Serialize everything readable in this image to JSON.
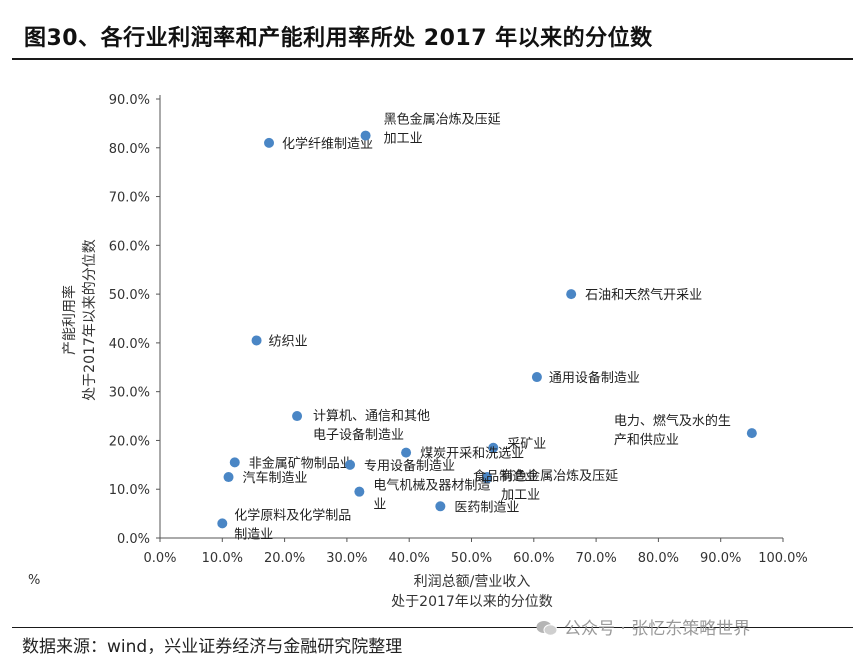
{
  "header": {
    "title": "图30、各行业利润率和产能利用率所处 2017 年以来的分位数"
  },
  "footer": {
    "source": "数据来源：wind，兴业证券经济与金融研究院整理",
    "watermark": "公众号 · 张忆东策略世界"
  },
  "colors": {
    "marker": "#4a86c5",
    "text": "#222222",
    "rule": "#1a1a1a"
  },
  "icons": {
    "watermark": "wechat-icon"
  },
  "chart_data": {
    "type": "scatter",
    "xlabel_lines": [
      "利润总额/营业收入",
      "处于2017年以来的分位数"
    ],
    "ylabel_lines": [
      "产能利用率",
      "处于2017年以来的分位数"
    ],
    "unit_label": "%",
    "xlim": [
      0,
      100
    ],
    "ylim": [
      0,
      90
    ],
    "x_ticks": [
      "0.0%",
      "10.0%",
      "20.0%",
      "30.0%",
      "40.0%",
      "50.0%",
      "60.0%",
      "70.0%",
      "80.0%",
      "90.0%",
      "100.0%"
    ],
    "y_ticks": [
      "0.0%",
      "10.0%",
      "20.0%",
      "30.0%",
      "40.0%",
      "50.0%",
      "60.0%",
      "70.0%",
      "80.0%",
      "90.0%"
    ],
    "grid": false,
    "legend": "none",
    "points": [
      {
        "name": "化学纤维制造业",
        "lines": [
          "化学纤维制造业"
        ],
        "x": 17.5,
        "y": 81.0
      },
      {
        "name": "黑色金属冶炼及压延加工业",
        "lines": [
          "黑色金属冶炼及压延",
          "加工业"
        ],
        "x": 33.0,
        "y": 82.5
      },
      {
        "name": "石油和天然气开采业",
        "lines": [
          "石油和天然气开采业"
        ],
        "x": 66.0,
        "y": 50.0
      },
      {
        "name": "纺织业",
        "lines": [
          "纺织业"
        ],
        "x": 15.5,
        "y": 40.5
      },
      {
        "name": "通用设备制造业",
        "lines": [
          "通用设备制造业"
        ],
        "x": 60.5,
        "y": 33.0
      },
      {
        "name": "计算机、通信和其他电子设备制造业",
        "lines": [
          "计算机、通信和其他",
          "电子设备制造业"
        ],
        "x": 22.0,
        "y": 25.0
      },
      {
        "name": "电力、燃气及水的生产和供应业",
        "lines": [
          "电力、燃气及水的生",
          "产和供应业"
        ],
        "x": 95.0,
        "y": 21.5
      },
      {
        "name": "采矿业",
        "lines": [
          "采矿业"
        ],
        "x": 53.5,
        "y": 18.5
      },
      {
        "name": "煤炭开采和洗选业",
        "lines": [
          "煤炭开采和洗选业"
        ],
        "x": 39.5,
        "y": 17.5
      },
      {
        "name": "非金属矿物制品业",
        "lines": [
          "非金属矿物制品业"
        ],
        "x": 12.0,
        "y": 15.5
      },
      {
        "name": "专用设备制造业",
        "lines": [
          "专用设备制造业"
        ],
        "x": 30.5,
        "y": 15.0
      },
      {
        "name": "有色金属冶炼及压延加工业",
        "lines": [
          "有色金属冶炼及压延",
          "加工业"
        ],
        "x": 52.5,
        "y": 12.5
      },
      {
        "name": "食品制造业",
        "lines": [
          "食品制造业"
        ],
        "x": 52.5,
        "y": 12.2
      },
      {
        "name": "汽车制造业",
        "lines": [
          "汽车制造业"
        ],
        "x": 11.0,
        "y": 12.5
      },
      {
        "name": "电气机械及器材制造业",
        "lines": [
          "电气机械及器材制造",
          "业"
        ],
        "x": 32.0,
        "y": 9.5
      },
      {
        "name": "医药制造业",
        "lines": [
          "医药制造业"
        ],
        "x": 45.0,
        "y": 6.5
      },
      {
        "name": "化学原料及化学制品制造业",
        "lines": [
          "化学原料及化学制品",
          "制造业"
        ],
        "x": 10.0,
        "y": 3.0
      }
    ]
  }
}
